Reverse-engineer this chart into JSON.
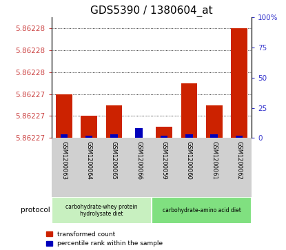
{
  "title": "GDS5390 / 1380604_at",
  "samples": [
    "GSM1200063",
    "GSM1200064",
    "GSM1200065",
    "GSM1200066",
    "GSM1200059",
    "GSM1200060",
    "GSM1200061",
    "GSM1200062"
  ],
  "transformed_count": [
    5.862274,
    5.862272,
    5.862273,
    5.86227,
    5.862271,
    5.862275,
    5.862273,
    5.86228
  ],
  "percentile_rank": [
    3,
    2,
    3,
    8,
    2,
    3,
    3,
    2
  ],
  "y_min": 5.86227,
  "y_max": 5.862281,
  "right_y_ticks": [
    0,
    25,
    50,
    75,
    100
  ],
  "left_tick_values": [
    5.86227,
    5.862272,
    5.862274,
    5.862276,
    5.862278,
    5.86228
  ],
  "left_tick_labels": [
    "5.86227",
    "5.86227",
    "5.86227",
    "5.86228",
    "5.86228",
    "5.86228"
  ],
  "protocols": [
    {
      "label": "carbohydrate-whey protein\nhydrolysate diet",
      "start": 0,
      "end": 4,
      "color": "#c8f0c0"
    },
    {
      "label": "carbohydrate-amino acid diet",
      "start": 4,
      "end": 8,
      "color": "#80e080"
    }
  ],
  "bar_color_red": "#cc2200",
  "bar_color_blue": "#0000bb",
  "bar_width": 0.65,
  "background_plot": "#ffffff",
  "background_label": "#d0d0d0",
  "left_axis_color": "#cc4444",
  "right_axis_color": "#3333cc",
  "grid_color": "#000000",
  "title_fontsize": 11,
  "tick_fontsize": 7.5,
  "sample_fontsize": 6,
  "legend_fontsize": 6.5
}
